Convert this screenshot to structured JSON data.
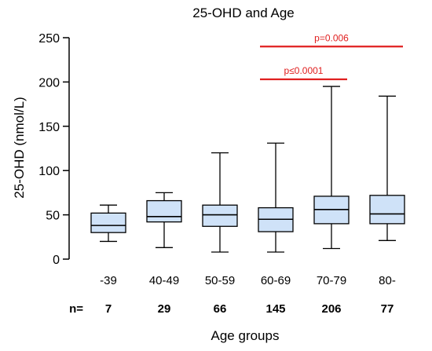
{
  "chart_data": {
    "type": "box",
    "title": "25-OHD and Age",
    "xlabel": "Age groups",
    "ylabel": "25-OHD (nmol/L)",
    "ylim": [
      0,
      250
    ],
    "yticks": [
      0,
      50,
      100,
      150,
      200,
      250
    ],
    "categories": [
      "-39",
      "40-49",
      "50-59",
      "60-69",
      "70-79",
      "80-"
    ],
    "n_label": "n=",
    "n_values": [
      "7",
      "29",
      "66",
      "145",
      "206",
      "77"
    ],
    "boxes": [
      {
        "min": 20,
        "q1": 30,
        "median": 38,
        "q3": 52,
        "max": 61
      },
      {
        "min": 13,
        "q1": 42,
        "median": 48,
        "q3": 66,
        "max": 75
      },
      {
        "min": 8,
        "q1": 37,
        "median": 50,
        "q3": 61,
        "max": 120
      },
      {
        "min": 8,
        "q1": 31,
        "median": 45,
        "q3": 58,
        "max": 131
      },
      {
        "min": 12,
        "q1": 40,
        "median": 56,
        "q3": 71,
        "max": 195
      },
      {
        "min": 21,
        "q1": 40,
        "median": 51,
        "q3": 72,
        "max": 184
      }
    ],
    "annotations": [
      {
        "text": "p=0.006",
        "from": "60-69",
        "to": "80-",
        "y": 240,
        "color": "#e02020"
      },
      {
        "text": "p≤0.0001",
        "from": "60-69",
        "to": "70-79",
        "y": 203,
        "color": "#e02020"
      }
    ],
    "box_fill": "#cfe2f8",
    "grid": false
  }
}
